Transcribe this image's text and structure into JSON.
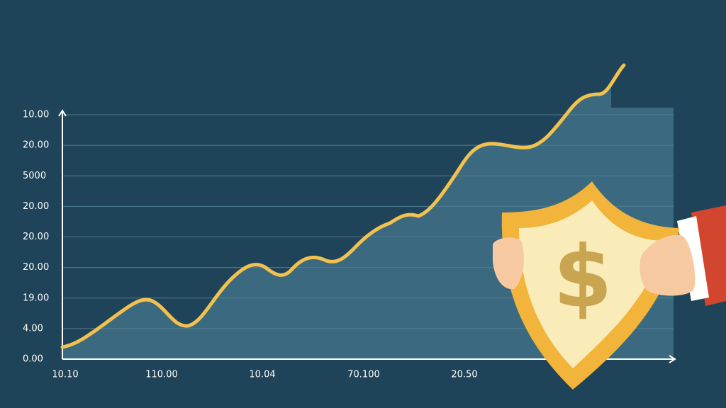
{
  "y_axis_labels": [
    "10.00",
    "20.00",
    "5000",
    "20.00",
    "20.00",
    "20.00",
    "19.00",
    "4.00",
    "0.00"
  ],
  "x_axis_labels": [
    "10.10",
    "110.00",
    "10.04",
    "70.100",
    "20.50"
  ],
  "shield_symbol": "$"
}
